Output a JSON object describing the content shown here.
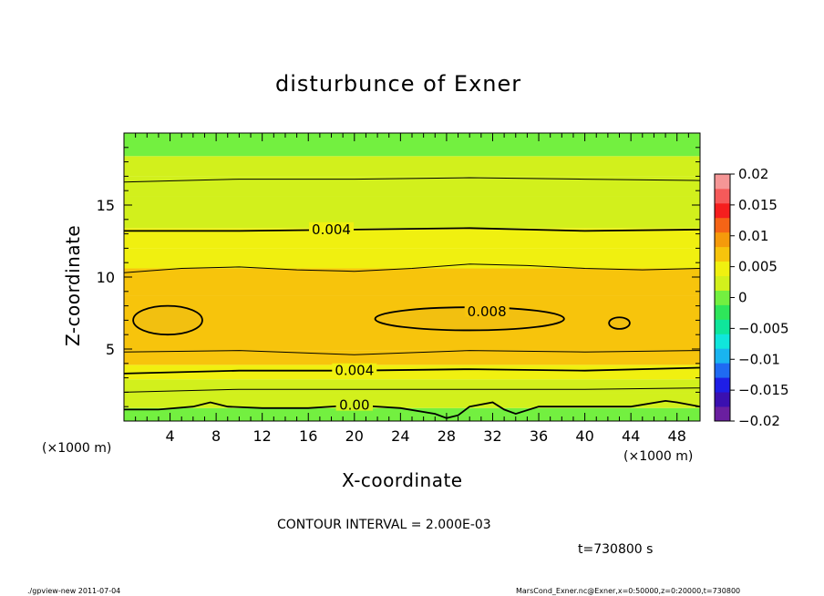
{
  "chart_data": {
    "type": "heatmap",
    "title": "disturbunce of Exner",
    "xlabel": "X-coordinate",
    "ylabel": "Z-coordinate",
    "x_unit": "(×1000 m)",
    "y_unit": "(×1000 m)",
    "xlim": [
      0,
      50
    ],
    "ylim": [
      0,
      20
    ],
    "x_ticks": [
      4,
      8,
      12,
      16,
      20,
      24,
      28,
      32,
      36,
      40,
      44,
      48
    ],
    "y_ticks": [
      5,
      10,
      15
    ],
    "bands": [
      {
        "z0": 0.0,
        "z1": 0.9,
        "value": 0.001
      },
      {
        "z0": 0.9,
        "z1": 1.9,
        "value": 0.002
      },
      {
        "z0": 1.9,
        "z1": 2.9,
        "value": 0.0035
      },
      {
        "z0": 2.9,
        "z1": 3.9,
        "value": 0.005
      },
      {
        "z0": 3.9,
        "z1": 4.9,
        "value": 0.0062
      },
      {
        "z0": 4.9,
        "z1": 8.7,
        "value": 0.0075
      },
      {
        "z0": 8.7,
        "z1": 10.6,
        "value": 0.0062
      },
      {
        "z0": 10.6,
        "z1": 12.0,
        "value": 0.005
      },
      {
        "z0": 12.0,
        "z1": 13.4,
        "value": 0.004
      },
      {
        "z0": 13.4,
        "z1": 15.6,
        "value": 0.003
      },
      {
        "z0": 15.6,
        "z1": 17.0,
        "value": 0.0022
      },
      {
        "z0": 17.0,
        "z1": 18.4,
        "value": 0.0016
      },
      {
        "z0": 18.4,
        "z1": 20.0,
        "value": 0.001
      }
    ],
    "contours": [
      {
        "name": "contour-0.000",
        "label": "0.00",
        "label_at": [
          20.0,
          1.1
        ],
        "points": [
          [
            0,
            0.8
          ],
          [
            3,
            0.8
          ],
          [
            6,
            1.0
          ],
          [
            7.5,
            1.3
          ],
          [
            9,
            1.0
          ],
          [
            12,
            0.9
          ],
          [
            16,
            0.9
          ],
          [
            20,
            1.1
          ],
          [
            24,
            0.9
          ],
          [
            27,
            0.5
          ],
          [
            28,
            0.2
          ],
          [
            29,
            0.4
          ],
          [
            30,
            1.0
          ],
          [
            32,
            1.3
          ],
          [
            33,
            0.8
          ],
          [
            34,
            0.5
          ],
          [
            36,
            1.0
          ],
          [
            40,
            1.0
          ],
          [
            44,
            1.0
          ],
          [
            47,
            1.4
          ],
          [
            48,
            1.3
          ],
          [
            50,
            1.0
          ]
        ]
      },
      {
        "name": "contour-0.002",
        "label": "",
        "points": [
          [
            0,
            2.0
          ],
          [
            10,
            2.2
          ],
          [
            20,
            2.2
          ],
          [
            30,
            2.2
          ],
          [
            40,
            2.2
          ],
          [
            50,
            2.3
          ]
        ]
      },
      {
        "name": "contour-0.004-lower",
        "label": "0.004",
        "label_at": [
          20.0,
          3.5
        ],
        "points": [
          [
            0,
            3.3
          ],
          [
            10,
            3.5
          ],
          [
            20,
            3.5
          ],
          [
            30,
            3.6
          ],
          [
            40,
            3.5
          ],
          [
            50,
            3.7
          ]
        ]
      },
      {
        "name": "contour-0.006-lower",
        "label": "",
        "points": [
          [
            0,
            4.8
          ],
          [
            10,
            4.9
          ],
          [
            20,
            4.6
          ],
          [
            30,
            4.9
          ],
          [
            40,
            4.8
          ],
          [
            50,
            4.9
          ]
        ]
      },
      {
        "name": "contour-0.006-upper",
        "label": "",
        "points": [
          [
            0,
            10.3
          ],
          [
            5,
            10.6
          ],
          [
            10,
            10.7
          ],
          [
            15,
            10.5
          ],
          [
            20,
            10.4
          ],
          [
            25,
            10.6
          ],
          [
            30,
            10.9
          ],
          [
            35,
            10.8
          ],
          [
            40,
            10.6
          ],
          [
            45,
            10.5
          ],
          [
            50,
            10.6
          ]
        ]
      },
      {
        "name": "contour-0.004-upper",
        "label": "0.004",
        "label_at": [
          18.0,
          13.3
        ],
        "points": [
          [
            0,
            13.2
          ],
          [
            10,
            13.2
          ],
          [
            20,
            13.3
          ],
          [
            30,
            13.4
          ],
          [
            40,
            13.2
          ],
          [
            50,
            13.3
          ]
        ]
      },
      {
        "name": "contour-0.002-upper",
        "label": "",
        "points": [
          [
            0,
            16.6
          ],
          [
            10,
            16.8
          ],
          [
            20,
            16.8
          ],
          [
            30,
            16.9
          ],
          [
            40,
            16.8
          ],
          [
            50,
            16.7
          ]
        ]
      }
    ],
    "closed_contours": [
      {
        "name": "contour-0.008-left",
        "value": 0.008,
        "cx": 3.8,
        "cz": 7.0,
        "rx": 3.0,
        "rz": 1.0
      },
      {
        "name": "contour-0.008-center",
        "value": 0.008,
        "cx": 30.0,
        "cz": 7.1,
        "rx": 8.2,
        "rz": 0.8
      },
      {
        "name": "contour-0.008-small",
        "value": 0.008,
        "cx": 43.0,
        "cz": 6.8,
        "rx": 0.9,
        "rz": 0.4
      }
    ],
    "center_label": {
      "text": "0.008",
      "at": [
        31.5,
        7.6
      ]
    },
    "colorbar": {
      "min": -0.02,
      "max": 0.02,
      "ticks": [
        "0.02",
        "0.015",
        "0.01",
        "0.005",
        "0",
        "−0.005",
        "−0.01",
        "−0.015",
        "−0.02"
      ],
      "colors": [
        "#6a1fa0",
        "#3a10b0",
        "#1e1ee6",
        "#1f6af2",
        "#19b4f0",
        "#10e6dc",
        "#0fe69b",
        "#2ee65a",
        "#73f040",
        "#d2f01c",
        "#f0f010",
        "#f7c40c",
        "#f59a0b",
        "#f56416",
        "#f51e1e",
        "#f55a5a",
        "#f59696"
      ]
    },
    "contour_interval": "CONTOUR INTERVAL = 2.000E-03",
    "time_label": "t=730800 s"
  },
  "footer": {
    "left": "./gpview-new   2011-07-04",
    "right": "MarsCond_Exner.nc@Exner,x=0:50000,z=0:20000,t=730800"
  }
}
